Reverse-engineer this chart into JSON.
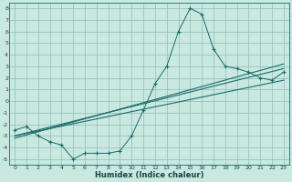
{
  "title": "",
  "xlabel": "Humidex (Indice chaleur)",
  "bg_color": "#c8e8e0",
  "grid_color": "#90bcb8",
  "line_color": "#1a6b6b",
  "xlim": [
    -0.5,
    23.5
  ],
  "ylim": [
    -5.5,
    8.5
  ],
  "xticks": [
    0,
    1,
    2,
    3,
    4,
    5,
    6,
    7,
    8,
    9,
    10,
    11,
    12,
    13,
    14,
    15,
    16,
    17,
    18,
    19,
    20,
    21,
    22,
    23
  ],
  "yticks": [
    -5,
    -4,
    -3,
    -2,
    -1,
    0,
    1,
    2,
    3,
    4,
    5,
    6,
    7,
    8
  ],
  "curve_x": [
    0,
    1,
    2,
    3,
    4,
    5,
    6,
    7,
    8,
    9,
    10,
    11,
    12,
    13,
    14,
    15,
    16,
    17,
    18,
    19,
    20,
    21,
    22,
    23
  ],
  "curve_y": [
    -2.5,
    -2.2,
    -3.0,
    -3.5,
    -3.8,
    -5.0,
    -4.5,
    -4.5,
    -4.5,
    -4.3,
    -3.0,
    -0.8,
    1.5,
    3.0,
    6.0,
    8.0,
    7.5,
    4.5,
    3.0,
    2.8,
    2.5,
    2.0,
    1.8,
    2.5
  ],
  "line1_x": [
    0,
    23
  ],
  "line1_y": [
    -3.0,
    2.8
  ],
  "line2_x": [
    0,
    23
  ],
  "line2_y": [
    -3.0,
    1.8
  ],
  "line3_x": [
    0,
    23
  ],
  "line3_y": [
    -3.2,
    3.2
  ]
}
